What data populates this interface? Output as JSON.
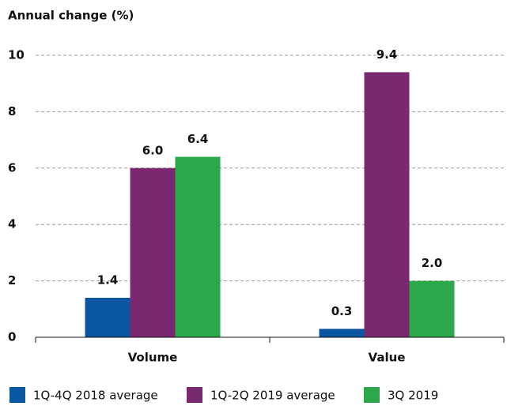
{
  "chart_data": {
    "type": "bar",
    "ylabel": "Annual change (%)",
    "categories": [
      "Volume",
      "Value"
    ],
    "series": [
      {
        "name": "1Q-4Q 2018 average",
        "color": "#0a56a0",
        "values": [
          1.4,
          0.3
        ],
        "value_labels": [
          "1.4",
          "0.3"
        ]
      },
      {
        "name": "1Q-2Q 2019 average",
        "color": "#7a2970",
        "values": [
          6.0,
          9.4
        ],
        "value_labels": [
          "6.0",
          "9.4"
        ]
      },
      {
        "name": "3Q 2019",
        "color": "#2ba84a",
        "values": [
          6.4,
          2.0
        ],
        "value_labels": [
          "6.4",
          "2.0"
        ]
      }
    ],
    "ylim": [
      0,
      10
    ],
    "yticks": [
      0,
      2,
      4,
      6,
      8,
      10
    ],
    "grid": true
  }
}
